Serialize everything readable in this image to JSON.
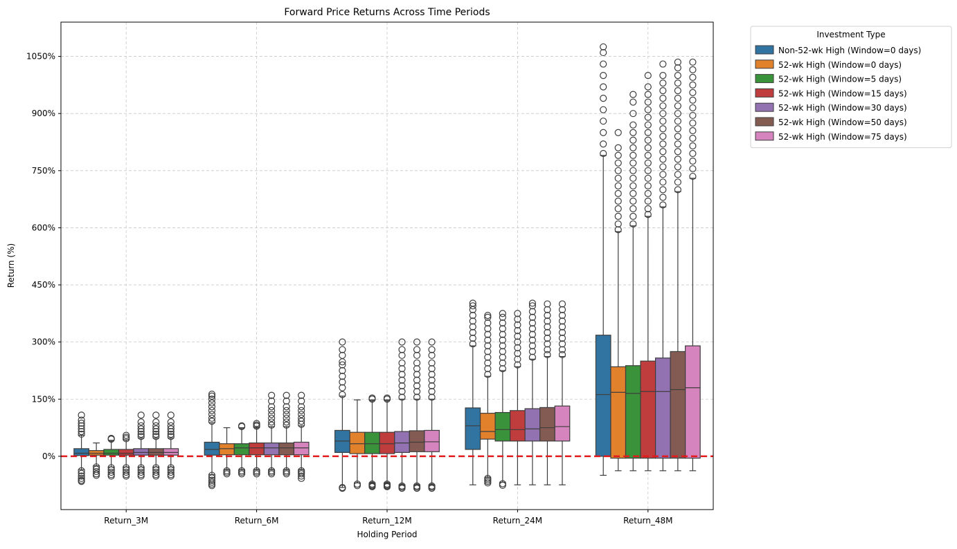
{
  "chart_data": {
    "type": "box",
    "title": "Forward Price Returns Across Time Periods",
    "xlabel": "Holding Period",
    "ylabel": "Return (%)",
    "ylim": [
      -140,
      1140
    ],
    "yticks": [
      0,
      150,
      300,
      450,
      600,
      750,
      900,
      1050
    ],
    "ytick_labels": [
      "0%",
      "150%",
      "300%",
      "450%",
      "600%",
      "750%",
      "900%",
      "1050%"
    ],
    "grid": true,
    "legend_title": "Investment Type",
    "legend_position": "outside-right-top",
    "reference_line": {
      "y": 0,
      "color": "#e31a1c",
      "style": "dashed"
    },
    "categories": [
      "Return_3M",
      "Return_6M",
      "Return_12M",
      "Return_24M",
      "Return_48M"
    ],
    "series": [
      {
        "name": "Non-52-wk High (Window=0 days)",
        "color": "#3274a1",
        "boxes": [
          {
            "whisker_low": -35,
            "q1": 2,
            "median": 8,
            "q3": 20,
            "whisker_high": 55,
            "outliers_low": [
              -38,
              -45,
              -52,
              -58,
              -63,
              -66
            ],
            "outliers_high": [
              58,
              65,
              72,
              80,
              87,
              95,
              108
            ]
          },
          {
            "whisker_low": -48,
            "q1": 3,
            "median": 18,
            "q3": 37,
            "whisker_high": 88,
            "outliers_low": [
              -50,
              -57,
              -63,
              -68,
              -73,
              -77
            ],
            "outliers_high": [
              92,
              100,
              110,
              120,
              130,
              140,
              150,
              158,
              163
            ]
          },
          {
            "whisker_low": -82,
            "q1": 10,
            "median": 40,
            "q3": 68,
            "whisker_high": 158,
            "outliers_low": [
              -82,
              -84
            ],
            "outliers_high": [
              162,
              180,
              195,
              210,
              225,
              240,
              248,
              265,
              280,
              300
            ]
          },
          {
            "whisker_low": -75,
            "q1": 18,
            "median": 80,
            "q3": 127,
            "whisker_high": 290,
            "outliers_low": [],
            "outliers_high": [
              295,
              310,
              325,
              340,
              355,
              370,
              385,
              395,
              402
            ]
          },
          {
            "whisker_low": -50,
            "q1": 0,
            "median": 162,
            "q3": 318,
            "whisker_high": 790,
            "outliers_low": [],
            "outliers_high": [
              795,
              820,
              850,
              880,
              910,
              940,
              970,
              1000,
              1030,
              1060,
              1075
            ]
          }
        ]
      },
      {
        "name": "52-wk High (Window=0 days)",
        "color": "#e1812c",
        "boxes": [
          {
            "whisker_low": -25,
            "q1": 3,
            "median": 8,
            "q3": 15,
            "whisker_high": 35,
            "outliers_low": [
              -28,
              -34,
              -40,
              -46,
              -50
            ],
            "outliers_high": []
          },
          {
            "whisker_low": -35,
            "q1": 4,
            "median": 20,
            "q3": 33,
            "whisker_high": 75,
            "outliers_low": [
              -38,
              -42,
              -46
            ],
            "outliers_high": []
          },
          {
            "whisker_low": -70,
            "q1": 7,
            "median": 33,
            "q3": 63,
            "whisker_high": 148,
            "outliers_low": [
              -73,
              -77
            ],
            "outliers_high": []
          },
          {
            "whisker_low": -55,
            "q1": 45,
            "median": 65,
            "q3": 113,
            "whisker_high": 210,
            "outliers_low": [
              -58,
              -62,
              -66,
              -70
            ],
            "outliers_high": [
              215,
              230,
              245,
              260,
              275,
              290,
              305,
              320,
              335,
              350,
              365,
              370
            ]
          },
          {
            "whisker_low": -38,
            "q1": -5,
            "median": 168,
            "q3": 235,
            "whisker_high": 590,
            "outliers_low": [],
            "outliers_high": [
              595,
              610,
              630,
              650,
              670,
              690,
              710,
              730,
              750,
              770,
              790,
              810,
              850
            ]
          }
        ]
      },
      {
        "name": "52-wk High (Window=5 days)",
        "color": "#3a923a",
        "boxes": [
          {
            "whisker_low": -28,
            "q1": 3,
            "median": 8,
            "q3": 18,
            "whisker_high": 42,
            "outliers_low": [
              -30,
              -36,
              -42,
              -48,
              -52
            ],
            "outliers_high": [
              45,
              47
            ]
          },
          {
            "whisker_low": -35,
            "q1": 4,
            "median": 22,
            "q3": 33,
            "whisker_high": 75,
            "outliers_low": [
              -38,
              -42,
              -46
            ],
            "outliers_high": [
              78,
              80
            ]
          },
          {
            "whisker_low": -70,
            "q1": 7,
            "median": 33,
            "q3": 63,
            "whisker_high": 148,
            "outliers_low": [
              -73,
              -76,
              -78,
              -80
            ],
            "outliers_high": [
              150,
              153
            ]
          },
          {
            "whisker_low": -68,
            "q1": 40,
            "median": 70,
            "q3": 115,
            "whisker_high": 225,
            "outliers_low": [
              -72,
              -76
            ],
            "outliers_high": [
              230,
              245,
              260,
              275,
              290,
              305,
              320,
              335,
              350,
              365,
              375
            ]
          },
          {
            "whisker_low": -38,
            "q1": -5,
            "median": 165,
            "q3": 238,
            "whisker_high": 605,
            "outliers_low": [],
            "outliers_high": [
              610,
              630,
              650,
              670,
              690,
              710,
              730,
              750,
              770,
              790,
              810,
              830,
              850,
              870,
              900,
              930,
              950
            ]
          }
        ]
      },
      {
        "name": "52-wk High (Window=15 days)",
        "color": "#c03d3e",
        "boxes": [
          {
            "whisker_low": -28,
            "q1": 3,
            "median": 8,
            "q3": 18,
            "whisker_high": 43,
            "outliers_low": [
              -30,
              -36,
              -42,
              -48,
              -52
            ],
            "outliers_high": [
              46,
              50,
              55
            ]
          },
          {
            "whisker_low": -35,
            "q1": 4,
            "median": 22,
            "q3": 35,
            "whisker_high": 76,
            "outliers_low": [
              -38,
              -42,
              -46
            ],
            "outliers_high": [
              79,
              82,
              86
            ]
          },
          {
            "whisker_low": -70,
            "q1": 7,
            "median": 33,
            "q3": 63,
            "whisker_high": 148,
            "outliers_low": [
              -73,
              -76,
              -78,
              -80
            ],
            "outliers_high": [
              150,
              153
            ]
          },
          {
            "whisker_low": -75,
            "q1": 40,
            "median": 70,
            "q3": 120,
            "whisker_high": 235,
            "outliers_low": [],
            "outliers_high": [
              240,
              255,
              270,
              285,
              300,
              315,
              330,
              345,
              360,
              375
            ]
          },
          {
            "whisker_low": -38,
            "q1": -5,
            "median": 170,
            "q3": 250,
            "whisker_high": 630,
            "outliers_low": [],
            "outliers_high": [
              635,
              650,
              670,
              690,
              710,
              730,
              750,
              770,
              790,
              810,
              830,
              850,
              870,
              890,
              910,
              930,
              950,
              970,
              1000
            ]
          }
        ]
      },
      {
        "name": "52-wk High (Window=30 days)",
        "color": "#9372b2",
        "boxes": [
          {
            "whisker_low": -28,
            "q1": 3,
            "median": 10,
            "q3": 20,
            "whisker_high": 48,
            "outliers_low": [
              -30,
              -36,
              -42,
              -48,
              -52
            ],
            "outliers_high": [
              52,
              58,
              65,
              72,
              80,
              90,
              108
            ]
          },
          {
            "whisker_low": -35,
            "q1": 4,
            "median": 22,
            "q3": 35,
            "whisker_high": 78,
            "outliers_low": [
              -38,
              -42,
              -46
            ],
            "outliers_high": [
              82,
              90,
              100,
              110,
              120,
              130,
              145,
              160
            ]
          },
          {
            "whisker_low": -75,
            "q1": 10,
            "median": 35,
            "q3": 65,
            "whisker_high": 150,
            "outliers_low": [
              -78,
              -81,
              -84
            ],
            "outliers_high": [
              155,
              170,
              185,
              200,
              215,
              230,
              245,
              265,
              280,
              300
            ]
          },
          {
            "whisker_low": -75,
            "q1": 40,
            "median": 72,
            "q3": 125,
            "whisker_high": 255,
            "outliers_low": [],
            "outliers_high": [
              260,
              275,
              290,
              305,
              320,
              335,
              350,
              365,
              380,
              395,
              402
            ]
          },
          {
            "whisker_low": -38,
            "q1": -5,
            "median": 170,
            "q3": 258,
            "whisker_high": 655,
            "outliers_low": [],
            "outliers_high": [
              660,
              680,
              700,
              720,
              740,
              760,
              780,
              800,
              820,
              840,
              860,
              880,
              900,
              920,
              940,
              960,
              980,
              1000,
              1030
            ]
          }
        ]
      },
      {
        "name": "52-wk High (Window=50 days)",
        "color": "#845b53",
        "boxes": [
          {
            "whisker_low": -28,
            "q1": 3,
            "median": 10,
            "q3": 20,
            "whisker_high": 48,
            "outliers_low": [
              -30,
              -36,
              -42,
              -48,
              -52
            ],
            "outliers_high": [
              52,
              58,
              65,
              72,
              80,
              90,
              108
            ]
          },
          {
            "whisker_low": -35,
            "q1": 4,
            "median": 22,
            "q3": 35,
            "whisker_high": 78,
            "outliers_low": [
              -38,
              -42,
              -46
            ],
            "outliers_high": [
              82,
              90,
              100,
              110,
              120,
              130,
              145,
              160
            ]
          },
          {
            "whisker_low": -75,
            "q1": 12,
            "median": 37,
            "q3": 67,
            "whisker_high": 150,
            "outliers_low": [
              -78,
              -81,
              -84
            ],
            "outliers_high": [
              155,
              170,
              185,
              200,
              215,
              230,
              245,
              265,
              280,
              300
            ]
          },
          {
            "whisker_low": -75,
            "q1": 40,
            "median": 75,
            "q3": 128,
            "whisker_high": 262,
            "outliers_low": [],
            "outliers_high": [
              267,
              280,
              295,
              310,
              325,
              340,
              355,
              370,
              385,
              400
            ]
          },
          {
            "whisker_low": -38,
            "q1": -5,
            "median": 175,
            "q3": 275,
            "whisker_high": 695,
            "outliers_low": [],
            "outliers_high": [
              700,
              720,
              740,
              760,
              780,
              800,
              820,
              840,
              860,
              880,
              900,
              920,
              940,
              960,
              980,
              1000,
              1020,
              1035
            ]
          }
        ]
      },
      {
        "name": "52-wk High (Window=75 days)",
        "color": "#d684bd",
        "boxes": [
          {
            "whisker_low": -28,
            "q1": 3,
            "median": 10,
            "q3": 20,
            "whisker_high": 48,
            "outliers_low": [
              -30,
              -36,
              -42,
              -48,
              -52
            ],
            "outliers_high": [
              52,
              58,
              65,
              72,
              80,
              90,
              108
            ]
          },
          {
            "whisker_low": -35,
            "q1": 4,
            "median": 22,
            "q3": 37,
            "whisker_high": 80,
            "outliers_low": [
              -38,
              -42,
              -46,
              -52,
              -58
            ],
            "outliers_high": [
              84,
              92,
              100,
              110,
              120,
              130,
              145,
              160
            ]
          },
          {
            "whisker_low": -75,
            "q1": 12,
            "median": 38,
            "q3": 68,
            "whisker_high": 150,
            "outliers_low": [
              -78,
              -81,
              -84
            ],
            "outliers_high": [
              155,
              170,
              185,
              200,
              215,
              230,
              245,
              265,
              280,
              300
            ]
          },
          {
            "whisker_low": -75,
            "q1": 40,
            "median": 78,
            "q3": 132,
            "whisker_high": 262,
            "outliers_low": [],
            "outliers_high": [
              267,
              280,
              295,
              310,
              325,
              340,
              355,
              370,
              385,
              400
            ]
          },
          {
            "whisker_low": -38,
            "q1": -5,
            "median": 180,
            "q3": 290,
            "whisker_high": 730,
            "outliers_low": [],
            "outliers_high": [
              735,
              755,
              775,
              795,
              815,
              835,
              855,
              875,
              895,
              915,
              935,
              955,
              975,
              995,
              1015,
              1035
            ]
          }
        ]
      }
    ]
  }
}
